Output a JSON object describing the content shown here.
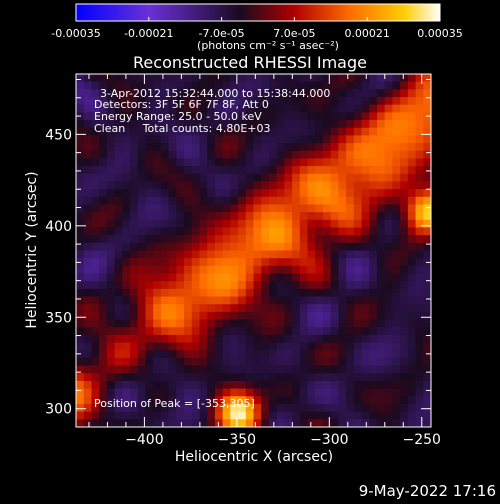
{
  "chart_data": {
    "type": "heatmap",
    "title": "Reconstructed RHESSI Image",
    "xlabel": "Heliocentric X (arcsec)",
    "ylabel": "Heliocentric Y (arcsec)",
    "xlim": [
      -437,
      -245
    ],
    "ylim": [
      290,
      483
    ],
    "xticks": [
      -400,
      -350,
      -300,
      -250
    ],
    "yticks": [
      300,
      350,
      400,
      450
    ],
    "colorbar": {
      "min": -0.00035,
      "max": 0.00035,
      "tick_labels": [
        "-0.00035",
        "-0.00021",
        "-7.0e-05",
        "7.0e-05",
        "0.00021",
        "0.00035"
      ],
      "tick_values": [
        -0.00035,
        -0.00021,
        -7e-05,
        7e-05,
        0.00021,
        0.00035
      ],
      "units_label": "(photons cm⁻² s⁻¹ asec⁻²)",
      "colors": [
        "#0000ff",
        "#6a30d8",
        "#1a0a20",
        "#b00000",
        "#ff6a00",
        "#ffcc00",
        "#ffffff"
      ]
    },
    "annotations": {
      "time_range": "3-Apr-2012 15:32:44.000 to 15:38:44.000",
      "detectors": "Detectors: 3F 5F 6F 7F 8F, Att 0",
      "energy": "Energy Range: 25.0 - 50.0 keV",
      "clean": "Clean     Total counts: 4.80E+03",
      "peak": "Position of Peak = [-353,305]"
    },
    "peak_position": [
      -353,
      305
    ]
  },
  "footer": {
    "timestamp": "9-May-2022 17:16"
  }
}
